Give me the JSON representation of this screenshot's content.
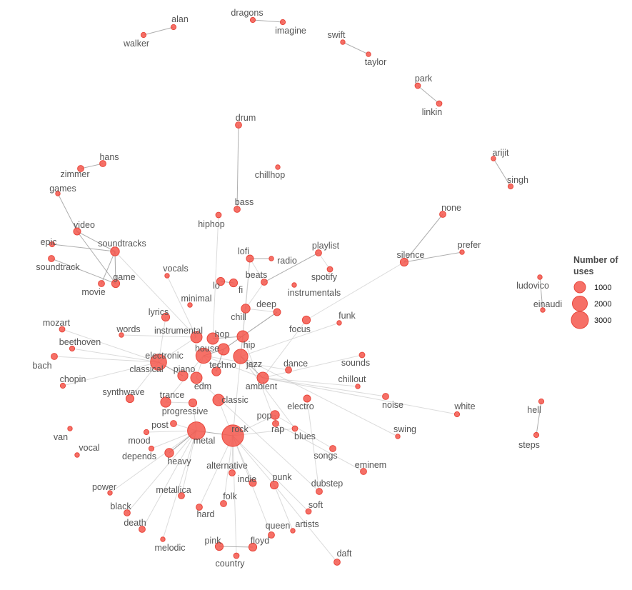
{
  "colors": {
    "node": "#f4574c",
    "edge": "#bdbdbd",
    "label": "#555555"
  },
  "legend": {
    "title_line1": "Number of",
    "title_line2": "uses",
    "sizes": [
      {
        "label": "1000",
        "value": 1000
      },
      {
        "label": "2000",
        "value": 2000
      },
      {
        "label": "3000",
        "value": 3000
      }
    ]
  },
  "chart_data": {
    "type": "network",
    "nodes": [
      {
        "id": "alan",
        "label": "alan",
        "uses": 100
      },
      {
        "id": "walker",
        "label": "walker",
        "uses": 100
      },
      {
        "id": "dragons",
        "label": "dragons",
        "uses": 100
      },
      {
        "id": "imagine",
        "label": "imagine",
        "uses": 100
      },
      {
        "id": "swift",
        "label": "swift",
        "uses": 20
      },
      {
        "id": "taylor",
        "label": "taylor",
        "uses": 80
      },
      {
        "id": "park",
        "label": "park",
        "uses": 120
      },
      {
        "id": "linkin",
        "label": "linkin",
        "uses": 120
      },
      {
        "id": "drum",
        "label": "drum",
        "uses": 150
      },
      {
        "id": "chillhop",
        "label": "chillhop",
        "uses": 80
      },
      {
        "id": "hans",
        "label": "hans",
        "uses": 150
      },
      {
        "id": "zimmer",
        "label": "zimmer",
        "uses": 150
      },
      {
        "id": "games",
        "label": "games",
        "uses": 80
      },
      {
        "id": "arijit",
        "label": "arijit",
        "uses": 60
      },
      {
        "id": "singh",
        "label": "singh",
        "uses": 100
      },
      {
        "id": "bass",
        "label": "bass",
        "uses": 150
      },
      {
        "id": "hiphop",
        "label": "hiphop",
        "uses": 120
      },
      {
        "id": "none",
        "label": "none",
        "uses": 150
      },
      {
        "id": "video",
        "label": "video",
        "uses": 200
      },
      {
        "id": "epic",
        "label": "epic",
        "uses": 100
      },
      {
        "id": "soundtracks",
        "label": "soundtracks",
        "uses": 300
      },
      {
        "id": "soundtrack",
        "label": "soundtrack",
        "uses": 150
      },
      {
        "id": "prefer",
        "label": "prefer",
        "uses": 80
      },
      {
        "id": "lofi",
        "label": "lofi",
        "uses": 200
      },
      {
        "id": "radio",
        "label": "radio",
        "uses": 60
      },
      {
        "id": "playlist",
        "label": "playlist",
        "uses": 150
      },
      {
        "id": "silence",
        "label": "silence",
        "uses": 250
      },
      {
        "id": "vocals",
        "label": "vocals",
        "uses": 80
      },
      {
        "id": "game",
        "label": "game",
        "uses": 250
      },
      {
        "id": "movie",
        "label": "movie",
        "uses": 150
      },
      {
        "id": "lo",
        "label": "lo",
        "uses": 250
      },
      {
        "id": "fi",
        "label": "fi",
        "uses": 250
      },
      {
        "id": "beats",
        "label": "beats",
        "uses": 150
      },
      {
        "id": "spotify",
        "label": "spotify",
        "uses": 120
      },
      {
        "id": "instrumentals",
        "label": "instrumentals",
        "uses": 60
      },
      {
        "id": "ludovico",
        "label": "ludovico",
        "uses": 50
      },
      {
        "id": "einaudi",
        "label": "einaudi",
        "uses": 50
      },
      {
        "id": "minimal",
        "label": "minimal",
        "uses": 80
      },
      {
        "id": "deep",
        "label": "deep",
        "uses": 200
      },
      {
        "id": "chill",
        "label": "chill",
        "uses": 300
      },
      {
        "id": "lyrics",
        "label": "lyrics",
        "uses": 250
      },
      {
        "id": "focus",
        "label": "focus",
        "uses": 250
      },
      {
        "id": "funk",
        "label": "funk",
        "uses": 50
      },
      {
        "id": "mozart",
        "label": "mozart",
        "uses": 120
      },
      {
        "id": "instrumental",
        "label": "instrumental",
        "uses": 500
      },
      {
        "id": "hop",
        "label": "hop",
        "uses": 500
      },
      {
        "id": "hip",
        "label": "hip",
        "uses": 500
      },
      {
        "id": "words",
        "label": "words",
        "uses": 80
      },
      {
        "id": "beethoven",
        "label": "beethoven",
        "uses": 100
      },
      {
        "id": "house",
        "label": "house",
        "uses": 500
      },
      {
        "id": "bach",
        "label": "bach",
        "uses": 150
      },
      {
        "id": "electronic",
        "label": "electronic",
        "uses": 900
      },
      {
        "id": "jazz",
        "label": "jazz",
        "uses": 800
      },
      {
        "id": "sounds",
        "label": "sounds",
        "uses": 120
      },
      {
        "id": "classical",
        "label": "classical",
        "uses": 1000
      },
      {
        "id": "techno",
        "label": "techno",
        "uses": 300
      },
      {
        "id": "dance",
        "label": "dance",
        "uses": 150
      },
      {
        "id": "chopin",
        "label": "chopin",
        "uses": 100
      },
      {
        "id": "piano",
        "label": "piano",
        "uses": 400
      },
      {
        "id": "chillout",
        "label": "chillout",
        "uses": 50
      },
      {
        "id": "ambient",
        "label": "ambient",
        "uses": 500
      },
      {
        "id": "edm",
        "label": "edm",
        "uses": 500
      },
      {
        "id": "synthwave",
        "label": "synthwave",
        "uses": 250
      },
      {
        "id": "trance",
        "label": "trance",
        "uses": 400
      },
      {
        "id": "classic",
        "label": "classic",
        "uses": 500
      },
      {
        "id": "noise",
        "label": "noise",
        "uses": 150
      },
      {
        "id": "electro",
        "label": "electro",
        "uses": 200
      },
      {
        "id": "white",
        "label": "white",
        "uses": 100
      },
      {
        "id": "progressive",
        "label": "progressive",
        "uses": 250
      },
      {
        "id": "pop",
        "label": "pop",
        "uses": 300
      },
      {
        "id": "hell",
        "label": "hell",
        "uses": 100
      },
      {
        "id": "post",
        "label": "post",
        "uses": 150
      },
      {
        "id": "van",
        "label": "van",
        "uses": 60
      },
      {
        "id": "mood",
        "label": "mood",
        "uses": 100
      },
      {
        "id": "rock",
        "label": "rock",
        "uses": 1800
      },
      {
        "id": "metal",
        "label": "metal",
        "uses": 1200
      },
      {
        "id": "rap",
        "label": "rap",
        "uses": 150
      },
      {
        "id": "blues",
        "label": "blues",
        "uses": 120
      },
      {
        "id": "swing",
        "label": "swing",
        "uses": 80
      },
      {
        "id": "vocal",
        "label": "vocal",
        "uses": 50
      },
      {
        "id": "depends",
        "label": "depends",
        "uses": 100
      },
      {
        "id": "heavy",
        "label": "heavy",
        "uses": 300
      },
      {
        "id": "steps",
        "label": "steps",
        "uses": 100
      },
      {
        "id": "songs",
        "label": "songs",
        "uses": 150
      },
      {
        "id": "eminem",
        "label": "eminem",
        "uses": 150
      },
      {
        "id": "alternative",
        "label": "alternative",
        "uses": 150
      },
      {
        "id": "indie",
        "label": "indie",
        "uses": 200
      },
      {
        "id": "punk",
        "label": "punk",
        "uses": 250
      },
      {
        "id": "dubstep",
        "label": "dubstep",
        "uses": 150
      },
      {
        "id": "power",
        "label": "power",
        "uses": 80
      },
      {
        "id": "metallica",
        "label": "metallica",
        "uses": 150
      },
      {
        "id": "black",
        "label": "black",
        "uses": 150
      },
      {
        "id": "folk",
        "label": "folk",
        "uses": 150
      },
      {
        "id": "hard",
        "label": "hard",
        "uses": 150
      },
      {
        "id": "soft",
        "label": "soft",
        "uses": 120
      },
      {
        "id": "death",
        "label": "death",
        "uses": 150
      },
      {
        "id": "queen",
        "label": "queen",
        "uses": 150
      },
      {
        "id": "artists",
        "label": "artists",
        "uses": 80
      },
      {
        "id": "melodic",
        "label": "melodic",
        "uses": 80
      },
      {
        "id": "pink",
        "label": "pink",
        "uses": 250
      },
      {
        "id": "floyd",
        "label": "floyd",
        "uses": 250
      },
      {
        "id": "daft",
        "label": "daft",
        "uses": 150
      },
      {
        "id": "country",
        "label": "country",
        "uses": 120
      }
    ],
    "edges": [
      [
        "alan",
        "walker"
      ],
      [
        "dragons",
        "imagine"
      ],
      [
        "swift",
        "taylor"
      ],
      [
        "park",
        "linkin"
      ],
      [
        "arijit",
        "singh"
      ],
      [
        "ludovico",
        "einaudi"
      ],
      [
        "hell",
        "steps"
      ],
      [
        "hans",
        "zimmer"
      ],
      [
        "none",
        "silence"
      ],
      [
        "silence",
        "prefer"
      ],
      [
        "drum",
        "bass"
      ],
      [
        "video",
        "game"
      ],
      [
        "video",
        "games"
      ],
      [
        "soundtracks",
        "game"
      ],
      [
        "soundtracks",
        "video"
      ],
      [
        "movie",
        "soundtracks"
      ],
      [
        "epic",
        "soundtracks"
      ],
      [
        "soundtrack",
        "game"
      ],
      [
        "lo",
        "fi"
      ],
      [
        "hip",
        "hop"
      ],
      [
        "pink",
        "floyd"
      ],
      [
        "heavy",
        "metal"
      ],
      [
        "pop",
        "rap"
      ],
      [
        "electronic",
        "house"
      ],
      [
        "metal",
        "rock"
      ],
      [
        "lofi",
        "radio"
      ],
      [
        "beats",
        "playlist"
      ],
      [
        "classical",
        "piano"
      ],
      [
        "deep",
        "house"
      ],
      [
        "techno",
        "house"
      ],
      [
        "jazz",
        "ambient"
      ]
    ]
  }
}
